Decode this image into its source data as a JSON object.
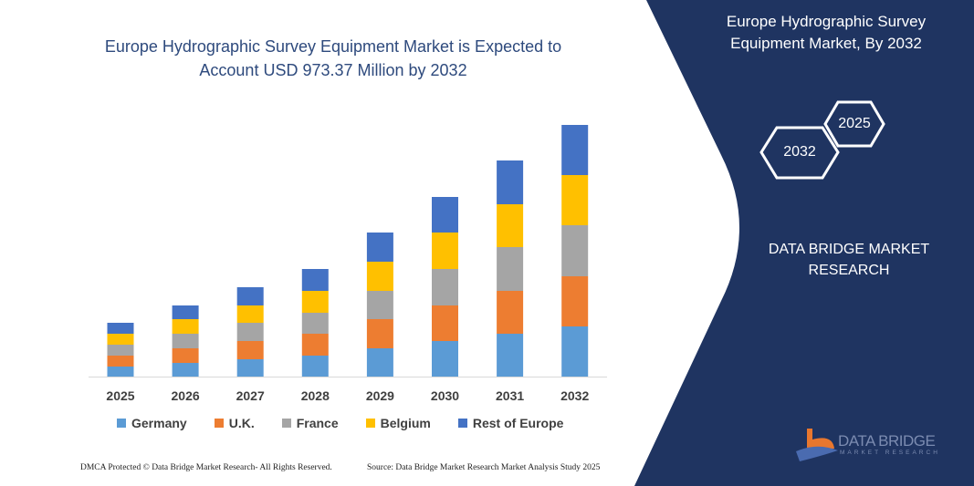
{
  "header": {
    "title_line1": "Europe Hydrographic Survey Equipment Market is Expected to",
    "title_line2": "Account USD 973.37 Million by 2032"
  },
  "side_panel": {
    "title_line1": "Europe Hydrographic Survey",
    "title_line2": "Equipment Market, By 2032",
    "hex_start": "2025",
    "hex_end": "2032",
    "brand_line1": "DATA BRIDGE MARKET",
    "brand_line2": "RESEARCH",
    "logo_text": "DATA BRIDGE",
    "logo_subtext": "MARKET RESEARCH",
    "panel_color": "#1f3461"
  },
  "footer": {
    "left": "DMCA Protected © Data Bridge Market Research- All Rights Reserved.",
    "right": "Source: Data Bridge Market Research Market Analysis Study 2025"
  },
  "chart_data": {
    "type": "bar",
    "stacked": true,
    "categories": [
      "2025",
      "2026",
      "2027",
      "2028",
      "2029",
      "2030",
      "2031",
      "2032"
    ],
    "series": [
      {
        "name": "Germany",
        "color": "#5b9bd5",
        "values": [
          11,
          15,
          19,
          23,
          31,
          39,
          47,
          55
        ]
      },
      {
        "name": "U.K.",
        "color": "#ed7d31",
        "values": [
          12,
          16,
          20,
          24,
          32,
          39,
          47,
          55
        ]
      },
      {
        "name": "France",
        "color": "#a5a5a5",
        "values": [
          12,
          16,
          20,
          23,
          31,
          40,
          48,
          56
        ]
      },
      {
        "name": "Belgium",
        "color": "#ffc000",
        "values": [
          12,
          16,
          19,
          24,
          32,
          40,
          47,
          55
        ]
      },
      {
        "name": "Rest of Europe",
        "color": "#4472c4",
        "values": [
          12,
          15,
          20,
          24,
          32,
          39,
          48,
          55
        ]
      }
    ],
    "title": "",
    "xlabel": "",
    "ylabel": "",
    "y_axis_shown": false,
    "grid": false,
    "legend_position": "bottom"
  }
}
